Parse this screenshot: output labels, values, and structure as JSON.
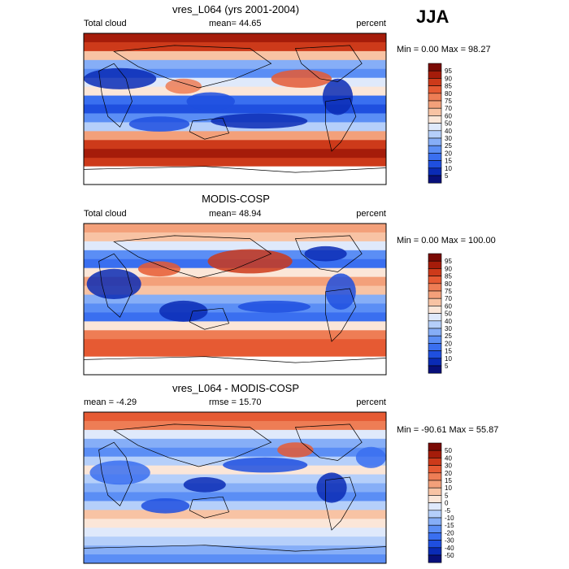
{
  "season_label": "JJA",
  "chart_data": [
    {
      "type": "heatmap",
      "title": "vres_L064 (yrs 2001-2004)",
      "left_label": "Total cloud",
      "center_label": "mean=  44.65",
      "right_label": "percent",
      "minmax_label": "Min =   0.00 Max =  98.27",
      "colorbar_levels": [
        "5",
        "10",
        "15",
        "20",
        "25",
        "30",
        "40",
        "50",
        "60",
        "70",
        "75",
        "80",
        "85",
        "90",
        "95"
      ],
      "colorbar_colors": [
        "#08107a",
        "#0a2bb5",
        "#1f4fdf",
        "#3a6ff0",
        "#5b8ef5",
        "#86aef7",
        "#b5cffa",
        "#dfe9fb",
        "#fbe6d8",
        "#f8c3a4",
        "#f3a07a",
        "#ee7d55",
        "#e65a33",
        "#cd3a1a",
        "#a51c0a",
        "#7a0a04"
      ]
    },
    {
      "type": "heatmap",
      "title": "MODIS-COSP",
      "left_label": "Total cloud",
      "center_label": "mean=  48.94",
      "right_label": "percent",
      "minmax_label": "Min =   0.00 Max = 100.00",
      "colorbar_levels": [
        "5",
        "10",
        "15",
        "20",
        "25",
        "30",
        "40",
        "50",
        "60",
        "70",
        "75",
        "80",
        "85",
        "90",
        "95"
      ],
      "colorbar_colors": [
        "#08107a",
        "#0a2bb5",
        "#1f4fdf",
        "#3a6ff0",
        "#5b8ef5",
        "#86aef7",
        "#b5cffa",
        "#dfe9fb",
        "#fbe6d8",
        "#f8c3a4",
        "#f3a07a",
        "#ee7d55",
        "#e65a33",
        "#cd3a1a",
        "#a51c0a",
        "#7a0a04"
      ]
    },
    {
      "type": "heatmap",
      "title": "vres_L064 - MODIS-COSP",
      "left_label": "mean =  -4.29",
      "center_label": "rmse =  15.70",
      "right_label": "percent",
      "minmax_label": "Min = -90.61 Max =  55.87",
      "colorbar_levels": [
        "-50",
        "-40",
        "-30",
        "-20",
        "-15",
        "-10",
        "-5",
        "0",
        "5",
        "10",
        "15",
        "20",
        "30",
        "40",
        "50"
      ],
      "colorbar_colors": [
        "#08107a",
        "#0a2bb5",
        "#1f4fdf",
        "#3a6ff0",
        "#5b8ef5",
        "#86aef7",
        "#b5cffa",
        "#dfe9fb",
        "#fbe6d8",
        "#f8c3a4",
        "#f3a07a",
        "#ee7d55",
        "#e65a33",
        "#cd3a1a",
        "#a51c0a",
        "#7a0a04"
      ]
    }
  ]
}
